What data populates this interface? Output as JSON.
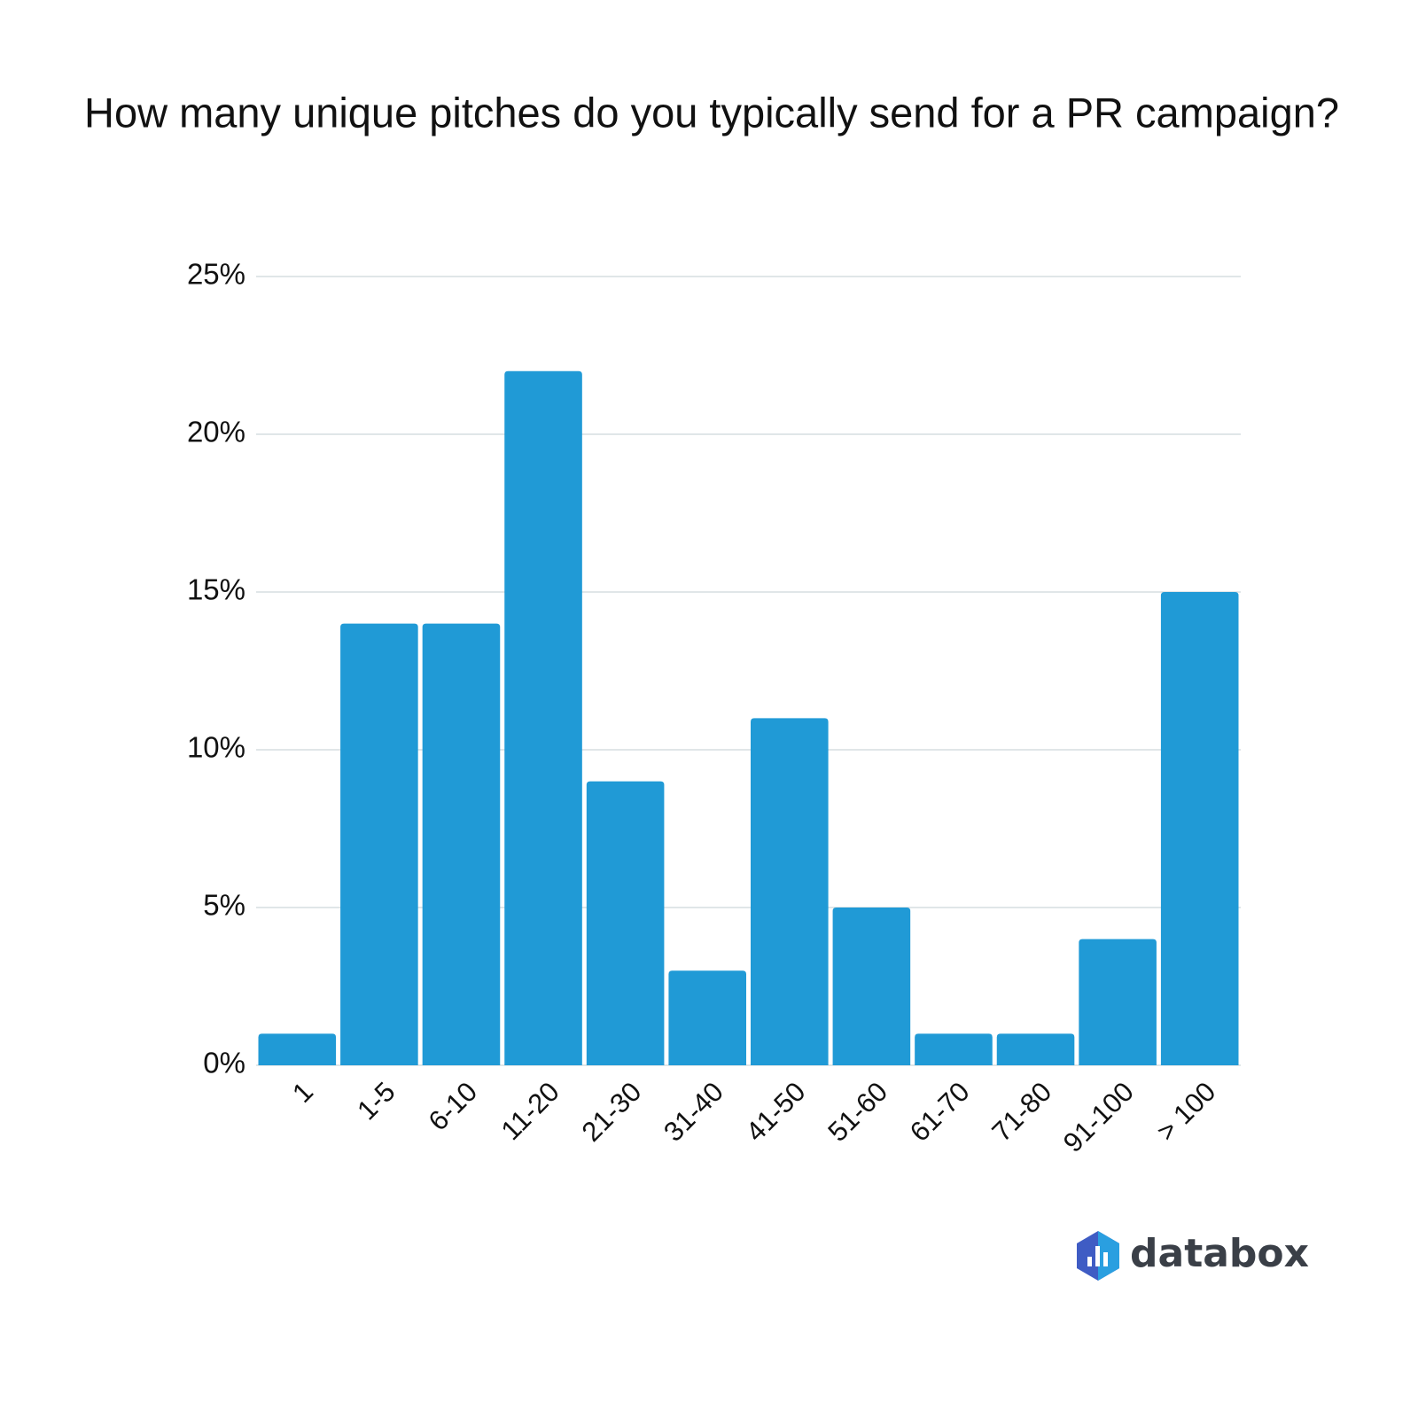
{
  "chart_data": {
    "type": "bar",
    "title": "How many unique pitches do you typically send for a PR campaign?",
    "categories": [
      "1",
      "1-5",
      "6-10",
      "11-20",
      "21-30",
      "31-40",
      "41-50",
      "51-60",
      "61-70",
      "71-80",
      "91-100",
      "> 100"
    ],
    "values": [
      1,
      14,
      14,
      22,
      9,
      3,
      11,
      5,
      1,
      1,
      4,
      15
    ],
    "color": "#209ad6",
    "ylim": [
      0,
      25
    ],
    "yticks": [
      {
        "value": 0,
        "label": "0%"
      },
      {
        "value": 5,
        "label": "5%"
      },
      {
        "value": 10,
        "label": "10%"
      },
      {
        "value": 15,
        "label": "15%"
      },
      {
        "value": 20,
        "label": "20%"
      },
      {
        "value": 25,
        "label": "25%"
      }
    ],
    "grid": true,
    "watermark": "databox"
  }
}
